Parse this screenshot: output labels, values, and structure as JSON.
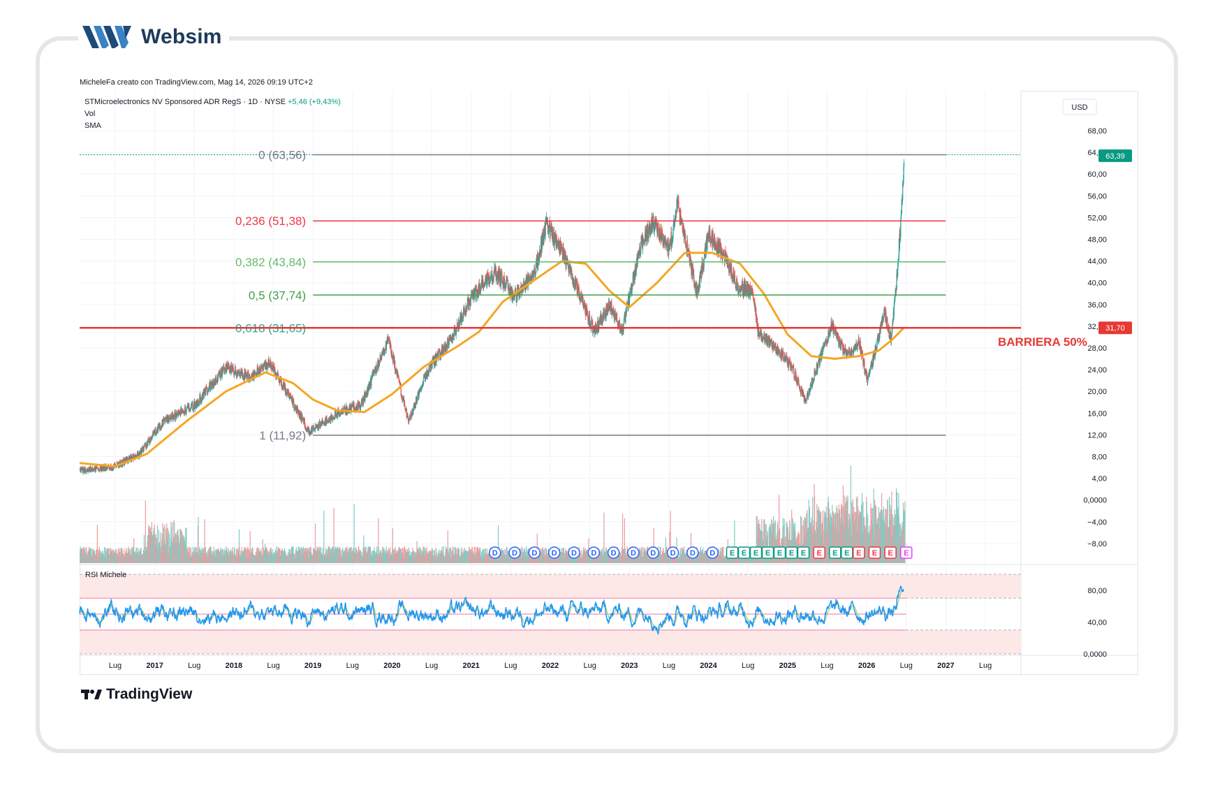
{
  "brand": {
    "name": "Websim"
  },
  "credit": "MicheleFa creato con TradingView.com, Mag 14, 2026 09:19 UTC+2",
  "legend": {
    "symbol": "STMicroelectronics NV Sponsored ADR RegS · 1D · NYSE",
    "change": "+5,46 (+9,43%)",
    "vol": "Vol",
    "sma": "SMA",
    "rsi": "RSI Michele"
  },
  "currency": "USD",
  "footer_brand": "TradingView",
  "annotation": "BARRIERA 50%",
  "colors": {
    "up": "#26a69a",
    "down": "#ef5350",
    "sma": "#f5a623",
    "rsi": "#2196f3",
    "rsi_ma": "#9ccc65",
    "fib_red": "#f23645",
    "fib_green": "#4caf50",
    "fib_grey": "#787b86",
    "barrier": "#e53935",
    "last_price_bg": "#089981"
  },
  "chart_data": [
    {
      "type": "candlestick",
      "title": "STMicroelectronics NV Sponsored ADR RegS · 1D · NYSE",
      "currency": "USD",
      "last_price": "63,39",
      "barrier_price": "31,70",
      "ylim": [
        -10,
        72
      ],
      "y_ticks": [
        "68,00",
        "64,00",
        "60,00",
        "56,00",
        "52,00",
        "48,00",
        "44,00",
        "40,00",
        "36,00",
        "32,00",
        "28,00",
        "24,00",
        "20,00",
        "16,00",
        "12,00",
        "8,00",
        "4,00",
        "0,0000",
        "−4,00",
        "−8,00"
      ],
      "x_labels": [
        "Lug",
        "2017",
        "Lug",
        "2018",
        "Lug",
        "2019",
        "Lug",
        "2020",
        "Lug",
        "2021",
        "Lug",
        "2022",
        "Lug",
        "2023",
        "Lug",
        "2024",
        "Lug",
        "2025",
        "Lug",
        "2026",
        "Lug",
        "2027",
        "Lug"
      ],
      "x_label_dates": [
        2016.5,
        2017,
        2017.5,
        2018,
        2018.5,
        2019,
        2019.5,
        2020,
        2020.5,
        2021,
        2021.5,
        2022,
        2022.5,
        2023,
        2023.5,
        2024,
        2024.5,
        2025,
        2025.5,
        2026,
        2026.5,
        2027,
        2027.5
      ],
      "xlim": [
        2016.05,
        2027.95
      ],
      "price_path": [
        [
          2016.05,
          5.5
        ],
        [
          2016.45,
          6.0
        ],
        [
          2016.8,
          8.5
        ],
        [
          2017.1,
          14.5
        ],
        [
          2017.5,
          17.5
        ],
        [
          2017.9,
          24.5
        ],
        [
          2018.2,
          22.5
        ],
        [
          2018.45,
          25.5
        ],
        [
          2018.7,
          19.0
        ],
        [
          2018.95,
          12.5
        ],
        [
          2019.3,
          16.0
        ],
        [
          2019.6,
          17.5
        ],
        [
          2019.95,
          29.5
        ],
        [
          2020.2,
          14.5
        ],
        [
          2020.45,
          24.0
        ],
        [
          2020.8,
          31.0
        ],
        [
          2021.0,
          37.5
        ],
        [
          2021.3,
          42.0
        ],
        [
          2021.55,
          37.5
        ],
        [
          2021.8,
          42.0
        ],
        [
          2021.95,
          51.0
        ],
        [
          2022.2,
          44.0
        ],
        [
          2022.55,
          31.0
        ],
        [
          2022.75,
          36.0
        ],
        [
          2022.9,
          31.0
        ],
        [
          2023.15,
          47.5
        ],
        [
          2023.3,
          51.0
        ],
        [
          2023.5,
          46.0
        ],
        [
          2023.6,
          54.5
        ],
        [
          2023.85,
          38.0
        ],
        [
          2024.0,
          49.0
        ],
        [
          2024.2,
          45.0
        ],
        [
          2024.35,
          39.5
        ],
        [
          2024.55,
          38.5
        ],
        [
          2024.62,
          31.0
        ],
        [
          2024.85,
          28.0
        ],
        [
          2025.05,
          24.5
        ],
        [
          2025.22,
          18.0
        ],
        [
          2025.45,
          28.0
        ],
        [
          2025.55,
          32.0
        ],
        [
          2025.75,
          26.5
        ],
        [
          2025.9,
          29.0
        ],
        [
          2026.0,
          22.0
        ],
        [
          2026.12,
          28.5
        ],
        [
          2026.22,
          34.5
        ],
        [
          2026.3,
          29.5
        ],
        [
          2026.37,
          40.0
        ],
        [
          2026.43,
          52.0
        ],
        [
          2026.47,
          63.39
        ]
      ],
      "sma_path": [
        [
          2016.05,
          6.8
        ],
        [
          2016.5,
          6.2
        ],
        [
          2016.9,
          8.5
        ],
        [
          2017.4,
          14.5
        ],
        [
          2017.9,
          20.0
        ],
        [
          2018.4,
          23.5
        ],
        [
          2018.75,
          21.5
        ],
        [
          2019.0,
          18.5
        ],
        [
          2019.3,
          16.5
        ],
        [
          2019.65,
          16.2
        ],
        [
          2020.0,
          19.5
        ],
        [
          2020.4,
          24.5
        ],
        [
          2020.85,
          28.5
        ],
        [
          2021.1,
          31.0
        ],
        [
          2021.4,
          36.5
        ],
        [
          2021.8,
          40.5
        ],
        [
          2022.15,
          44.0
        ],
        [
          2022.45,
          43.5
        ],
        [
          2022.75,
          38.5
        ],
        [
          2023.0,
          35.5
        ],
        [
          2023.35,
          40.0
        ],
        [
          2023.7,
          45.5
        ],
        [
          2024.05,
          45.5
        ],
        [
          2024.4,
          43.5
        ],
        [
          2024.7,
          38.0
        ],
        [
          2025.0,
          30.5
        ],
        [
          2025.3,
          26.5
        ],
        [
          2025.6,
          26.0
        ],
        [
          2025.9,
          26.5
        ],
        [
          2026.15,
          27.5
        ],
        [
          2026.32,
          29.5
        ],
        [
          2026.47,
          31.7
        ]
      ],
      "fibonacci": [
        {
          "label": "0 (63,56)",
          "value": 63.56,
          "color": "#787b86"
        },
        {
          "label": "0,236 (51,38)",
          "value": 51.38,
          "color": "#f23645"
        },
        {
          "label": "0,382 (43,84)",
          "value": 43.84,
          "color": "#66bb6a"
        },
        {
          "label": "0,5 (37,74)",
          "value": 37.74,
          "color": "#43a047"
        },
        {
          "label": "0,618 (31,65)",
          "value": 31.65,
          "color": "#26a69a"
        },
        {
          "label": "1 (11,92)",
          "value": 11.92,
          "color": "#787b86"
        }
      ],
      "volume": {
        "description": "volume histogram, higher in 2025–2026"
      },
      "events": [
        {
          "date": 2021.3,
          "type": "D"
        },
        {
          "date": 2021.55,
          "type": "D"
        },
        {
          "date": 2021.8,
          "type": "D"
        },
        {
          "date": 2022.05,
          "type": "D"
        },
        {
          "date": 2022.3,
          "type": "D"
        },
        {
          "date": 2022.55,
          "type": "D"
        },
        {
          "date": 2022.8,
          "type": "D"
        },
        {
          "date": 2023.05,
          "type": "D"
        },
        {
          "date": 2023.3,
          "type": "D"
        },
        {
          "date": 2023.55,
          "type": "D"
        },
        {
          "date": 2023.8,
          "type": "D"
        },
        {
          "date": 2024.05,
          "type": "D"
        },
        {
          "date": 2024.3,
          "type": "E",
          "color": "green"
        },
        {
          "date": 2024.45,
          "type": "E",
          "color": "green"
        },
        {
          "date": 2024.6,
          "type": "E",
          "color": "green"
        },
        {
          "date": 2024.75,
          "type": "E",
          "color": "green"
        },
        {
          "date": 2024.9,
          "type": "E",
          "color": "green"
        },
        {
          "date": 2025.05,
          "type": "E",
          "color": "green"
        },
        {
          "date": 2025.2,
          "type": "E",
          "color": "green"
        },
        {
          "date": 2025.4,
          "type": "E",
          "color": "red"
        },
        {
          "date": 2025.6,
          "type": "E",
          "color": "green"
        },
        {
          "date": 2025.75,
          "type": "E",
          "color": "green"
        },
        {
          "date": 2025.9,
          "type": "E",
          "color": "red"
        },
        {
          "date": 2026.1,
          "type": "E",
          "color": "red"
        },
        {
          "date": 2026.3,
          "type": "E",
          "color": "red"
        },
        {
          "date": 2026.5,
          "type": "E",
          "color": "purple"
        }
      ]
    },
    {
      "type": "line",
      "title": "RSI Michele",
      "ylim": [
        0,
        100
      ],
      "y_ticks": [
        "80,00",
        "40,00",
        "0,0000"
      ],
      "bands": [
        70,
        50,
        30
      ],
      "last_value": 85
    }
  ]
}
